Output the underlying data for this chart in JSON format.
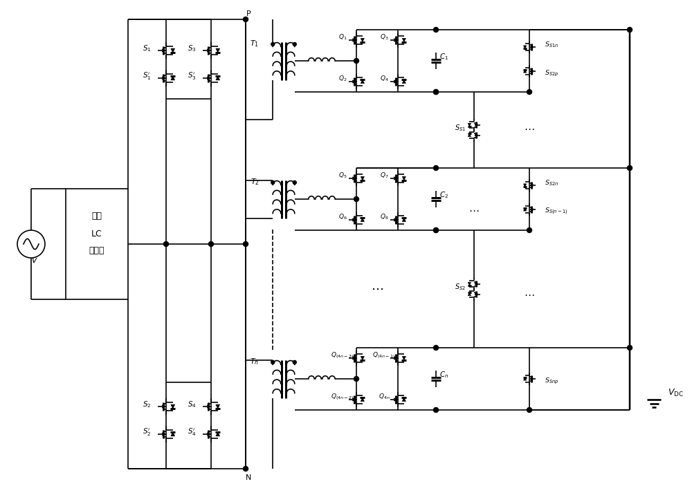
{
  "bg_color": "#ffffff",
  "line_color": "#000000",
  "lw": 1.2,
  "fig_width": 10.0,
  "fig_height": 7.03,
  "dpi": 100,
  "labels": {
    "v": "$v$",
    "filter_line1": "单相",
    "filter_line2": "LC",
    "filter_line3": "滤波器",
    "P": "P",
    "N": "N",
    "T1": "$T_1$",
    "T2": "$T_2$",
    "Tn": "$T_n$",
    "S1": "$S_1$",
    "S1p": "$S_1'$",
    "S2": "$S_2$",
    "S2p": "$S_2'$",
    "S3": "$S_3$",
    "S3p": "$S_3'$",
    "S4": "$S_4$",
    "S4p": "$S_4'$",
    "Q1": "$Q_1$",
    "Q2": "$Q_2$",
    "Q3": "$Q_3$",
    "Q4": "$Q_4$",
    "Q5": "$Q_5$",
    "Q6": "$Q_6$",
    "Q7": "$Q_7$",
    "Q8": "$Q_8$",
    "Q4n3": "$Q_{(4n-3)}$",
    "Q4n2": "$Q_{(4n-2)}$",
    "Q4n1": "$Q_{(4n-1)}$",
    "Q4n": "$Q_{4n}$",
    "C1": "$C_1$",
    "C2": "$C_2$",
    "Cn": "$C_n$",
    "SS1": "$S_{S1}$",
    "SS2": "$S_{S2}$",
    "SS1n": "$S_{S1n}$",
    "SS2p": "$S_{S2p}$",
    "SS2n": "$S_{S2n}$",
    "SSn1": "$S_{S(n-1)}$",
    "SSnp": "$S_{Snp}$",
    "VDC": "$V_{\\mathrm{DC}}$",
    "dots": "$\\cdots$"
  }
}
